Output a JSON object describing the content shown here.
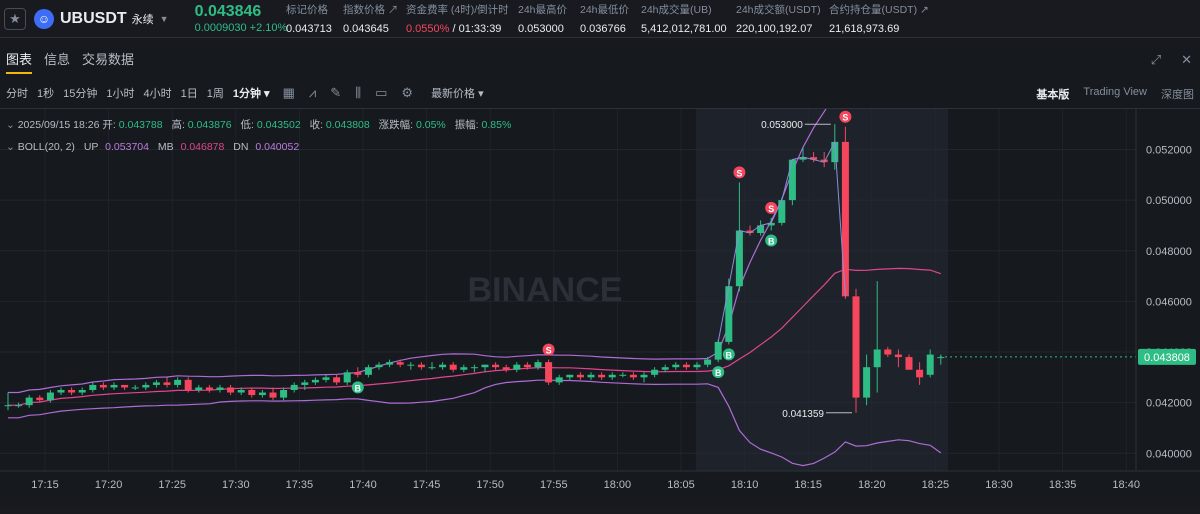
{
  "header": {
    "symbol": "UBUSDT",
    "contract_type": "永续",
    "price": "0.043846",
    "change": "0.0009030 +2.10%",
    "stats": [
      {
        "label": "标记价格",
        "value": "0.043713"
      },
      {
        "label": "指数价格 ↗",
        "value": "0.043645"
      },
      {
        "label": "资金费率 (4时)/倒计时",
        "value": "0.0550%",
        "value2": " / 01:33:39"
      },
      {
        "label": "24h最高价",
        "value": "0.053000"
      },
      {
        "label": "24h最低价",
        "value": "0.036766"
      },
      {
        "label": "24h成交量(UB)",
        "value": "5,412,012,781.00"
      },
      {
        "label": "24h成交额(USDT)",
        "value": "220,100,192.07"
      },
      {
        "label": "合约持仓量(USDT) ↗",
        "value": "21,618,973.69"
      }
    ]
  },
  "tabs": [
    "图表",
    "信息",
    "交易数据"
  ],
  "toolbar": {
    "intervals": [
      "分时",
      "1秒",
      "15分钟",
      "1小时",
      "4小时",
      "1日",
      "1周"
    ],
    "active_interval": "1分钟 ▾",
    "price_mode": "最新价格 ▾"
  },
  "view_modes": [
    "基本版",
    "Trading View",
    "深度图"
  ],
  "legend": {
    "ohlc_prefix": "2025/09/15 18:26  开:",
    "open": "0.043788",
    "high_label": "高:",
    "high": "0.043876",
    "low_label": "低:",
    "low": "0.043502",
    "close_label": "收:",
    "close": "0.043808",
    "chg_label": "涨跌幅:",
    "chg": "0.05%",
    "amp_label": "振幅:",
    "amp": "0.85%",
    "boll_label": "BOLL(20, 2)",
    "up_label": "UP",
    "up": "0.053704",
    "mb_label": "MB",
    "mb": "0.046878",
    "dn_label": "DN",
    "dn": "0.040052"
  },
  "watermark": "BINANCE",
  "chart_data": {
    "type": "candlestick",
    "y_ticks": [
      "0.052000",
      "0.050000",
      "0.048000",
      "0.046000",
      "0.044000",
      "0.042000",
      "0.040000"
    ],
    "ylim": [
      0.0393,
      0.0536
    ],
    "x_ticks": [
      "17:15",
      "17:20",
      "17:25",
      "17:30",
      "17:35",
      "17:40",
      "17:45",
      "17:50",
      "17:55",
      "18:00",
      "18:05",
      "18:10",
      "18:15",
      "18:20",
      "18:25",
      "18:30",
      "18:35",
      "18:40"
    ],
    "current_price_label": "0.043808",
    "high_marker": "0.053000",
    "low_marker": "0.041359",
    "candles": [
      [
        0.0419,
        0.0424,
        0.0417,
        0.0419
      ],
      [
        0.0419,
        0.042,
        0.0418,
        0.0419
      ],
      [
        0.0419,
        0.0423,
        0.0418,
        0.0422
      ],
      [
        0.0422,
        0.0423,
        0.042,
        0.0421
      ],
      [
        0.0421,
        0.0425,
        0.042,
        0.0424
      ],
      [
        0.0424,
        0.0426,
        0.0423,
        0.0425
      ],
      [
        0.0425,
        0.0426,
        0.0423,
        0.0424
      ],
      [
        0.0424,
        0.0426,
        0.0423,
        0.0425
      ],
      [
        0.0425,
        0.0428,
        0.0424,
        0.0427
      ],
      [
        0.0427,
        0.0428,
        0.0425,
        0.0426
      ],
      [
        0.0426,
        0.0428,
        0.0425,
        0.0427
      ],
      [
        0.0427,
        0.0427,
        0.0425,
        0.0426
      ],
      [
        0.0426,
        0.0427,
        0.0425,
        0.0426
      ],
      [
        0.0426,
        0.0428,
        0.0425,
        0.0427
      ],
      [
        0.0427,
        0.0429,
        0.0426,
        0.0428
      ],
      [
        0.0428,
        0.043,
        0.0426,
        0.0427
      ],
      [
        0.0427,
        0.043,
        0.0426,
        0.0429
      ],
      [
        0.0429,
        0.043,
        0.0424,
        0.0425
      ],
      [
        0.0425,
        0.0427,
        0.0424,
        0.0426
      ],
      [
        0.0426,
        0.0427,
        0.0424,
        0.0425
      ],
      [
        0.0425,
        0.0427,
        0.0424,
        0.0426
      ],
      [
        0.0426,
        0.0427,
        0.0423,
        0.0424
      ],
      [
        0.0424,
        0.0426,
        0.0423,
        0.0425
      ],
      [
        0.0425,
        0.0426,
        0.0422,
        0.0423
      ],
      [
        0.0423,
        0.0425,
        0.0422,
        0.0424
      ],
      [
        0.0424,
        0.0426,
        0.0421,
        0.0422
      ],
      [
        0.0422,
        0.0426,
        0.0421,
        0.0425
      ],
      [
        0.0425,
        0.0428,
        0.0424,
        0.0427
      ],
      [
        0.0427,
        0.0429,
        0.0425,
        0.0428
      ],
      [
        0.0428,
        0.043,
        0.0427,
        0.0429
      ],
      [
        0.0429,
        0.0431,
        0.0428,
        0.043
      ],
      [
        0.043,
        0.0431,
        0.0427,
        0.0428
      ],
      [
        0.0428,
        0.0433,
        0.0427,
        0.0432
      ],
      [
        0.0432,
        0.0434,
        0.043,
        0.0431
      ],
      [
        0.0431,
        0.0435,
        0.043,
        0.0434
      ],
      [
        0.0434,
        0.0436,
        0.0433,
        0.0435
      ],
      [
        0.0435,
        0.0437,
        0.0434,
        0.0436
      ],
      [
        0.0436,
        0.0437,
        0.0434,
        0.0435
      ],
      [
        0.0435,
        0.0436,
        0.0433,
        0.0435
      ],
      [
        0.0435,
        0.0436,
        0.0433,
        0.0434
      ],
      [
        0.0434,
        0.0436,
        0.0433,
        0.0434
      ],
      [
        0.0434,
        0.0436,
        0.0433,
        0.0435
      ],
      [
        0.0435,
        0.0436,
        0.0432,
        0.0433
      ],
      [
        0.0433,
        0.0435,
        0.0432,
        0.0434
      ],
      [
        0.0434,
        0.0435,
        0.0432,
        0.0434
      ],
      [
        0.0434,
        0.0435,
        0.0432,
        0.0435
      ],
      [
        0.0435,
        0.0436,
        0.0433,
        0.0434
      ],
      [
        0.0434,
        0.0435,
        0.0432,
        0.0433
      ],
      [
        0.0433,
        0.0436,
        0.0432,
        0.0435
      ],
      [
        0.0435,
        0.0436,
        0.0433,
        0.0434
      ],
      [
        0.0434,
        0.0437,
        0.0433,
        0.0436
      ],
      [
        0.0436,
        0.0437,
        0.0427,
        0.0428
      ],
      [
        0.0428,
        0.0431,
        0.0427,
        0.043
      ],
      [
        0.043,
        0.0431,
        0.0429,
        0.0431
      ],
      [
        0.0431,
        0.0432,
        0.0429,
        0.043
      ],
      [
        0.043,
        0.0432,
        0.0429,
        0.0431
      ],
      [
        0.0431,
        0.0432,
        0.0429,
        0.043
      ],
      [
        0.043,
        0.0432,
        0.0429,
        0.0431
      ],
      [
        0.0431,
        0.0432,
        0.043,
        0.0431
      ],
      [
        0.0431,
        0.0432,
        0.0429,
        0.043
      ],
      [
        0.043,
        0.0432,
        0.0428,
        0.0431
      ],
      [
        0.0431,
        0.0434,
        0.043,
        0.0433
      ],
      [
        0.0433,
        0.0435,
        0.0432,
        0.0434
      ],
      [
        0.0434,
        0.0436,
        0.0433,
        0.0435
      ],
      [
        0.0435,
        0.0436,
        0.0433,
        0.0434
      ],
      [
        0.0434,
        0.0436,
        0.0433,
        0.0435
      ],
      [
        0.0435,
        0.0438,
        0.0434,
        0.0437
      ],
      [
        0.0437,
        0.0445,
        0.0436,
        0.0444
      ],
      [
        0.0444,
        0.0469,
        0.0443,
        0.0466
      ],
      [
        0.0466,
        0.0507,
        0.0464,
        0.0488
      ],
      [
        0.0488,
        0.049,
        0.0486,
        0.0487
      ],
      [
        0.0487,
        0.0492,
        0.0486,
        0.049
      ],
      [
        0.049,
        0.0493,
        0.0488,
        0.0491
      ],
      [
        0.0491,
        0.0501,
        0.049,
        0.05
      ],
      [
        0.05,
        0.0516,
        0.0498,
        0.0516
      ],
      [
        0.0516,
        0.0521,
        0.0515,
        0.0517
      ],
      [
        0.0517,
        0.0519,
        0.0515,
        0.0516
      ],
      [
        0.0516,
        0.0519,
        0.0513,
        0.0515
      ],
      [
        0.0515,
        0.053,
        0.0512,
        0.0523
      ],
      [
        0.0523,
        0.0529,
        0.0461,
        0.0462
      ],
      [
        0.0462,
        0.0465,
        0.0416,
        0.0422
      ],
      [
        0.0422,
        0.0439,
        0.0419,
        0.0434
      ],
      [
        0.0434,
        0.0468,
        0.0424,
        0.0441
      ],
      [
        0.0441,
        0.0442,
        0.0438,
        0.0439
      ],
      [
        0.0439,
        0.0441,
        0.0434,
        0.0438
      ],
      [
        0.0438,
        0.0439,
        0.0433,
        0.0433
      ],
      [
        0.0433,
        0.0436,
        0.0427,
        0.043
      ],
      [
        0.0431,
        0.0441,
        0.043,
        0.0439
      ],
      [
        0.0438,
        0.0439,
        0.0435,
        0.0438
      ]
    ],
    "signals": [
      {
        "type": "S",
        "candle": 51,
        "side": "above"
      },
      {
        "type": "B",
        "candle": 33,
        "side": "below"
      },
      {
        "type": "B",
        "candle": 67,
        "side": "below"
      },
      {
        "type": "B",
        "candle": 68,
        "side": "below"
      },
      {
        "type": "S",
        "candle": 69,
        "side": "above"
      },
      {
        "type": "B",
        "candle": 72,
        "side": "below"
      },
      {
        "type": "S",
        "candle": 72,
        "side": "above"
      },
      {
        "type": "S",
        "candle": 79,
        "side": "above"
      }
    ]
  }
}
